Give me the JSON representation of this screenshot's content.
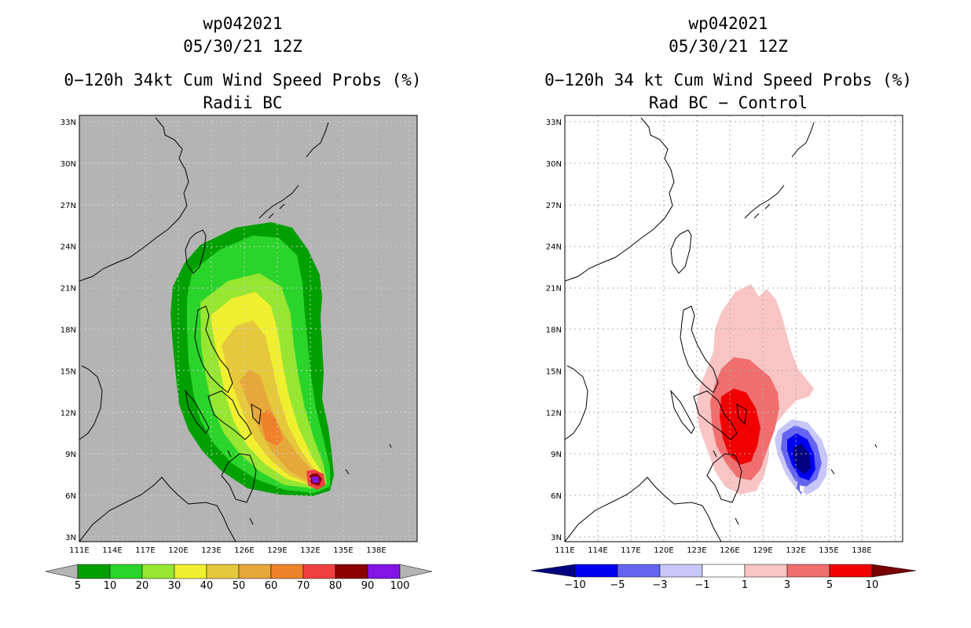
{
  "left_panel": {
    "storm_id": "wp042021",
    "datetime": "05/30/21 12Z",
    "title": "0−120h 34kt Cum Wind Speed Probs (%)",
    "subtitle": "Radii BC",
    "colorbar": {
      "labels": [
        "5",
        "10",
        "20",
        "30",
        "40",
        "50",
        "60",
        "70",
        "80",
        "90",
        "100"
      ],
      "colors": [
        "#00a000",
        "#2ad42a",
        "#96e632",
        "#f0f030",
        "#e6c83c",
        "#e6a83a",
        "#f0822a",
        "#f04040",
        "#8c0000",
        "#8214e6"
      ]
    }
  },
  "right_panel": {
    "storm_id": "wp042021",
    "datetime": "05/30/21 12Z",
    "title": "0−120h 34 kt Cum Wind Speed Probs (%)",
    "subtitle": "Rad BC − Control",
    "colorbar": {
      "labels": [
        "−10",
        "−5",
        "−3",
        "−1",
        "1",
        "3",
        "5",
        "10"
      ],
      "colors": [
        "#0000f0",
        "#6464f0",
        "#c8c8f8",
        "#ffffff",
        "#f8c4c4",
        "#f06e6e",
        "#f00000"
      ],
      "under_color": "#000080",
      "over_color": "#780000"
    }
  },
  "map": {
    "lat_labels": [
      "33N",
      "30N",
      "27N",
      "24N",
      "21N",
      "18N",
      "15N",
      "12N",
      "9N",
      "6N",
      "3N"
    ],
    "lon_labels": [
      "111E",
      "114E",
      "117E",
      "120E",
      "123E",
      "126E",
      "129E",
      "132E",
      "135E",
      "138E"
    ],
    "background_color": "#b4b4b4"
  }
}
